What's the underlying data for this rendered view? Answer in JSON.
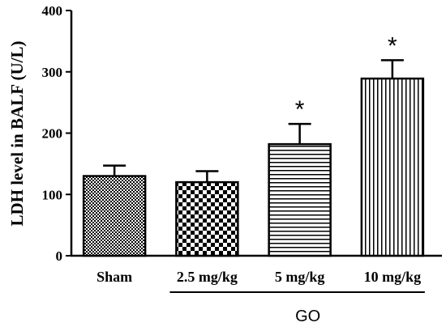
{
  "chart_data": {
    "type": "bar",
    "ylabel": "LDH level in BALF (U/L)",
    "ylim": [
      0,
      400
    ],
    "yticks": [
      0,
      100,
      200,
      300,
      400
    ],
    "categories": [
      "Sham",
      "2.5 mg/kg",
      "5 mg/kg",
      "10 mg/kg"
    ],
    "values": [
      130,
      120,
      182,
      289
    ],
    "errors": [
      17,
      18,
      33,
      30
    ],
    "significance": [
      "",
      "",
      "*",
      "*"
    ],
    "patterns": [
      "fine-check",
      "checkerboard",
      "horizontal-lines",
      "vertical-lines"
    ],
    "group_label": "GO",
    "group_categories": [
      1,
      2,
      3
    ],
    "grid": false
  }
}
